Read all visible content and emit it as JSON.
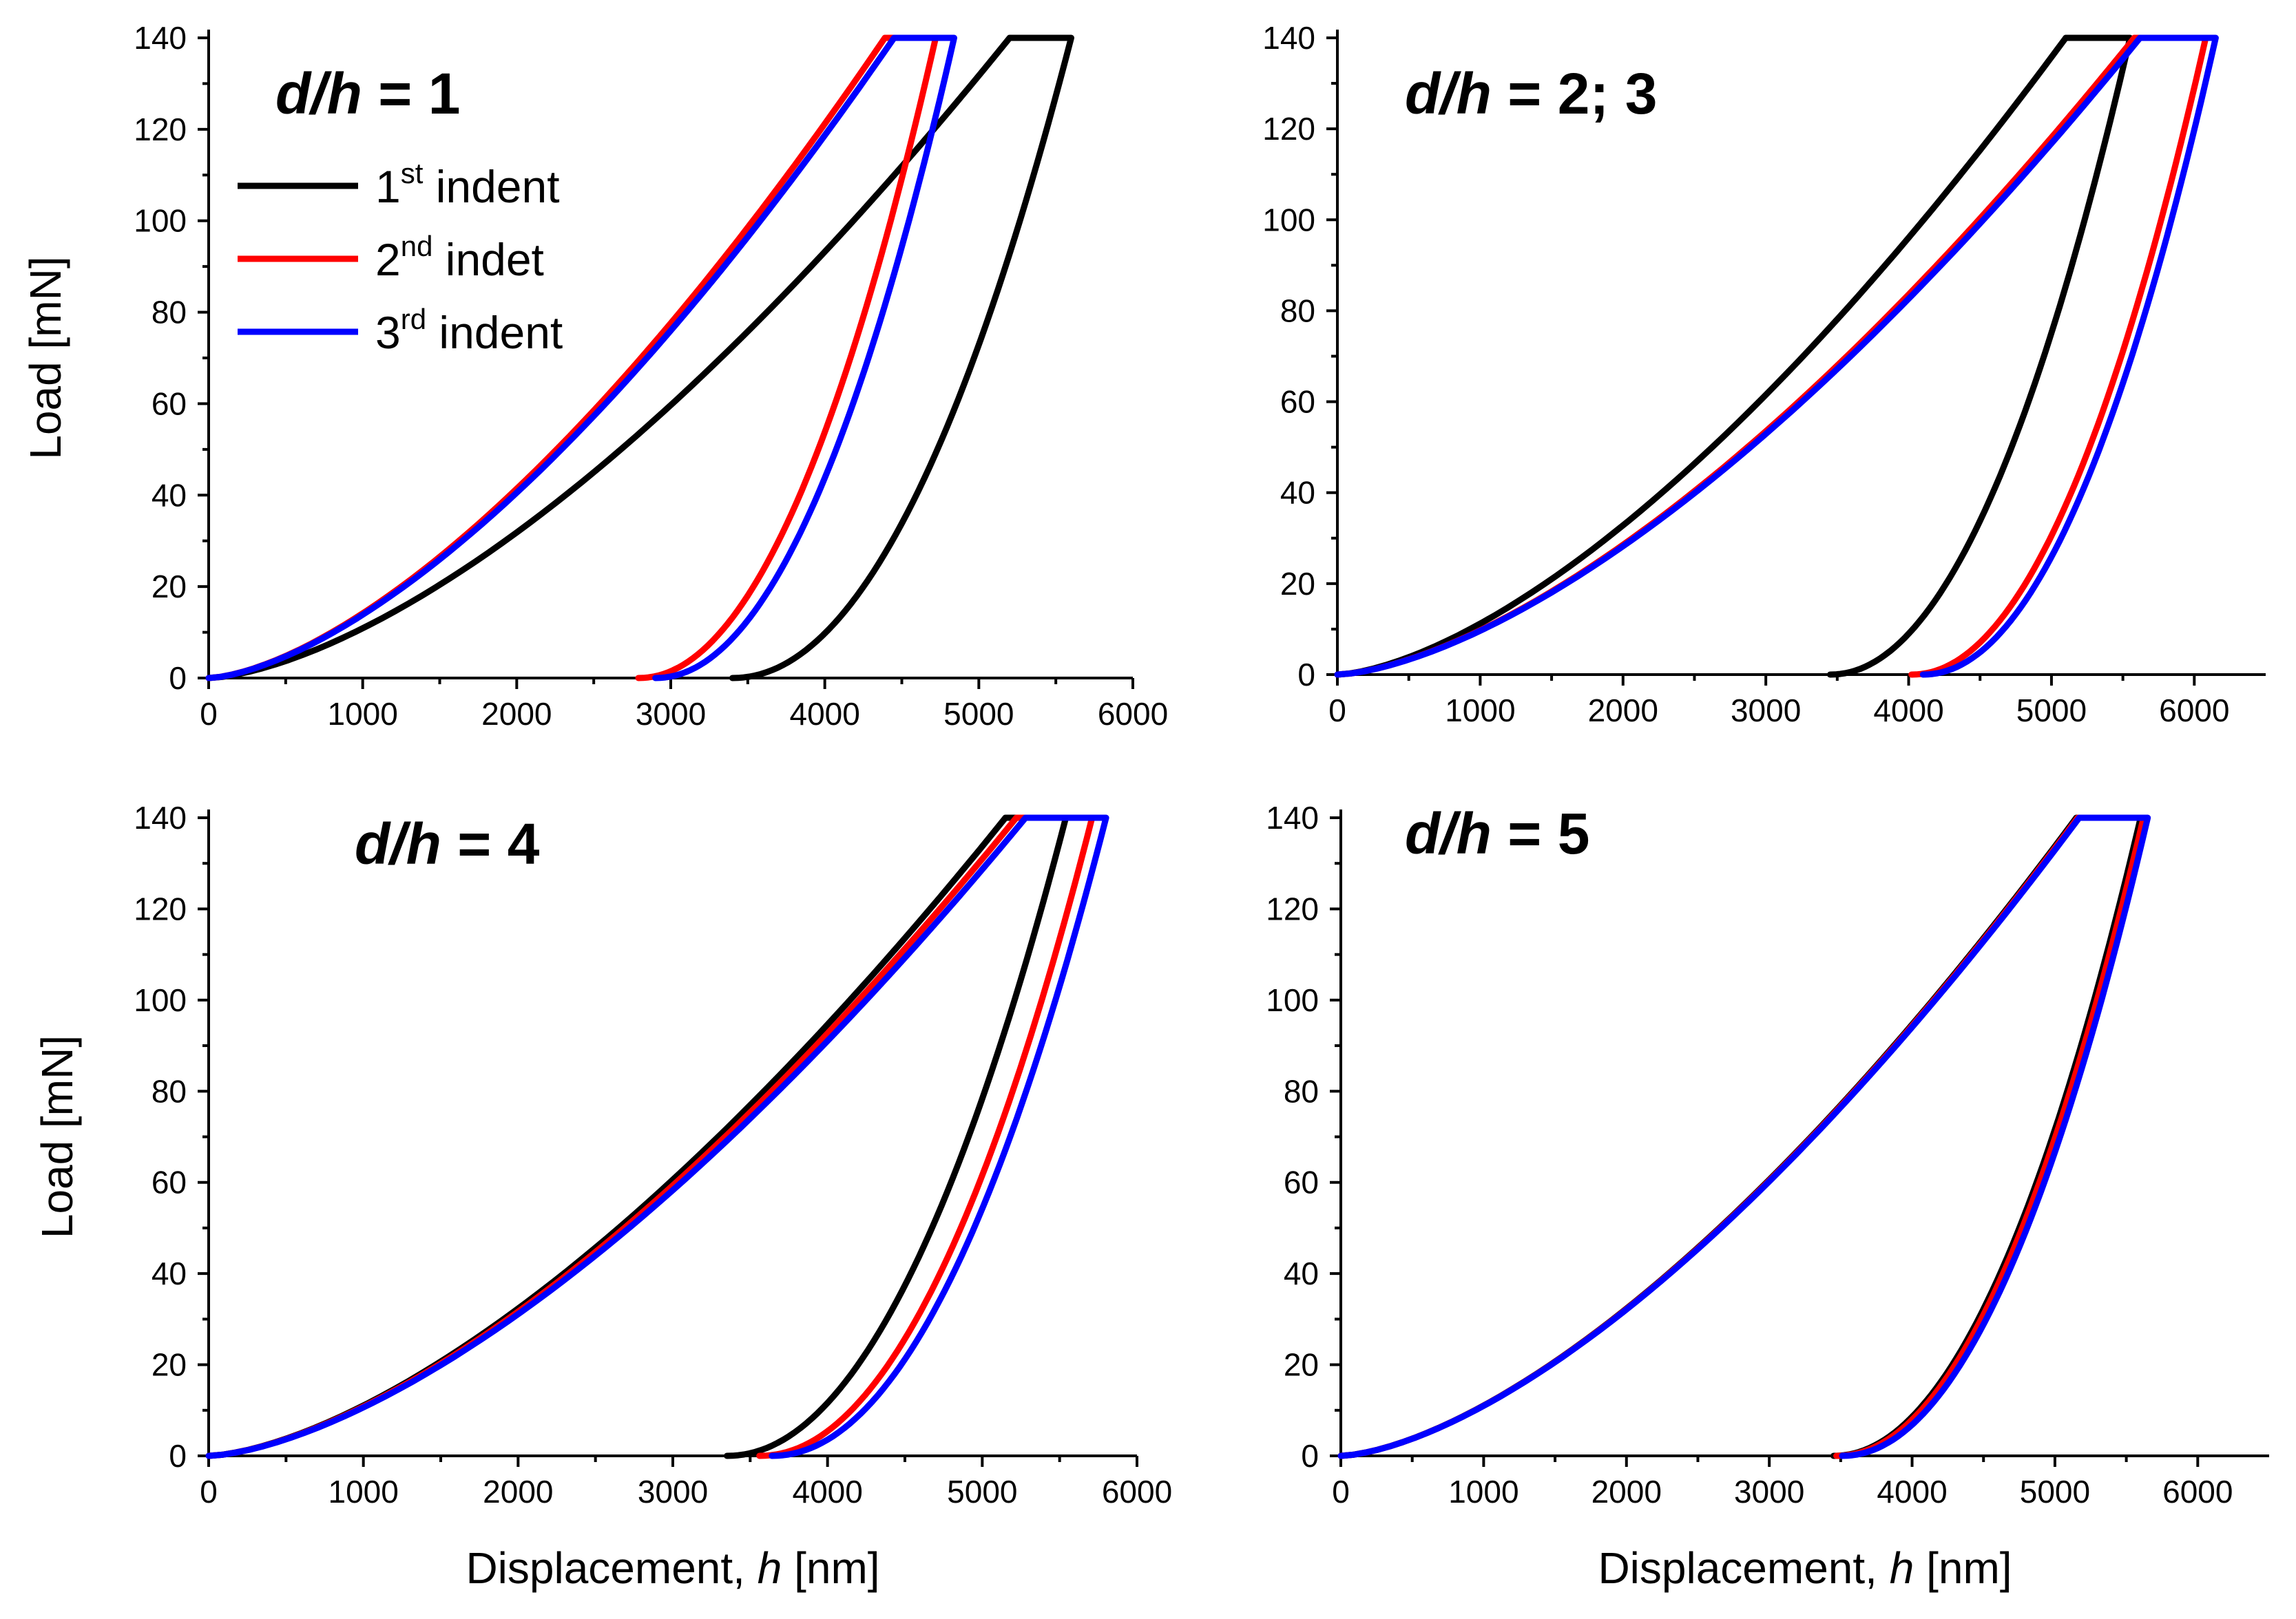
{
  "chart_data": [
    {
      "type": "line",
      "title_prefix": "d/h",
      "title_suffix": " = 1",
      "xlabel": "",
      "ylabel": "Load [mN]",
      "xlim": [
        0,
        6000
      ],
      "ylim": [
        0,
        140
      ],
      "xticks": [
        0,
        1000,
        2000,
        3000,
        4000,
        5000,
        6000
      ],
      "yticks": [
        0,
        20,
        40,
        60,
        80,
        100,
        120,
        140
      ],
      "legend": {
        "position": "top-left",
        "entries": [
          {
            "main": "1",
            "sup": "st",
            "rest": " indent",
            "color": "#000000"
          },
          {
            "main": "2",
            "sup": "nd",
            "rest": " indet",
            "color": "#ff0000"
          },
          {
            "main": "3",
            "sup": "rd",
            "rest": " indent",
            "color": "#0000ff"
          }
        ]
      },
      "series": [
        {
          "name": "1st indent",
          "color": "#000000",
          "loading_end": 5200,
          "hold_end": 5600,
          "unload_start": 3400,
          "max_load": 140
        },
        {
          "name": "2nd indet",
          "color": "#ff0000",
          "loading_end": 4390,
          "hold_end": 4720,
          "unload_start": 2790,
          "max_load": 140
        },
        {
          "name": "3rd indent",
          "color": "#0000ff",
          "loading_end": 4450,
          "hold_end": 4840,
          "unload_start": 2900,
          "max_load": 140
        }
      ]
    },
    {
      "type": "line",
      "title_prefix": "d/h",
      "title_suffix": " = 2; 3",
      "xlabel": "",
      "ylabel": "",
      "xlim": [
        0,
        6500
      ],
      "ylim": [
        0,
        140
      ],
      "xticks": [
        0,
        1000,
        2000,
        3000,
        4000,
        5000,
        6000
      ],
      "yticks": [
        0,
        20,
        40,
        60,
        80,
        100,
        120,
        140
      ],
      "series": [
        {
          "name": "1st indent",
          "color": "#000000",
          "loading_end": 5100,
          "hold_end": 5550,
          "unload_start": 3450,
          "max_load": 140
        },
        {
          "name": "2nd indet",
          "color": "#ff0000",
          "loading_end": 5580,
          "hold_end": 6080,
          "unload_start": 4020,
          "max_load": 140
        },
        {
          "name": "3rd indent",
          "color": "#0000ff",
          "loading_end": 5620,
          "hold_end": 6150,
          "unload_start": 4100,
          "max_load": 140
        }
      ]
    },
    {
      "type": "line",
      "title_prefix": "d/h",
      "title_suffix": " = 4",
      "xlabel_prefix": "Displacement, ",
      "xlabel_var": "h",
      "xlabel_suffix": " [nm]",
      "ylabel": "Load [mN]",
      "xlim": [
        0,
        6000
      ],
      "ylim": [
        0,
        140
      ],
      "xticks": [
        0,
        1000,
        2000,
        3000,
        4000,
        5000,
        6000
      ],
      "yticks": [
        0,
        20,
        40,
        60,
        80,
        100,
        120,
        140
      ],
      "series": [
        {
          "name": "1st indent",
          "color": "#000000",
          "loading_end": 5150,
          "hold_end": 5540,
          "unload_start": 3350,
          "max_load": 140
        },
        {
          "name": "2nd indet",
          "color": "#ff0000",
          "loading_end": 5220,
          "hold_end": 5710,
          "unload_start": 3560,
          "max_load": 140
        },
        {
          "name": "3rd indent",
          "color": "#0000ff",
          "loading_end": 5280,
          "hold_end": 5800,
          "unload_start": 3640,
          "max_load": 140
        }
      ]
    },
    {
      "type": "line",
      "title_prefix": "d/h",
      "title_suffix": " = 5",
      "xlabel_prefix": "Displacement, ",
      "xlabel_var": "h",
      "xlabel_suffix": " [nm]",
      "ylabel": "",
      "xlim": [
        0,
        6500
      ],
      "ylim": [
        0,
        140
      ],
      "xticks": [
        0,
        1000,
        2000,
        3000,
        4000,
        5000,
        6000
      ],
      "yticks": [
        0,
        20,
        40,
        60,
        80,
        100,
        120,
        140
      ],
      "series": [
        {
          "name": "1st indent",
          "color": "#000000",
          "loading_end": 5150,
          "hold_end": 5600,
          "unload_start": 3450,
          "max_load": 140
        },
        {
          "name": "2nd indet",
          "color": "#ff0000",
          "loading_end": 5160,
          "hold_end": 5620,
          "unload_start": 3470,
          "max_load": 140
        },
        {
          "name": "3rd indent",
          "color": "#0000ff",
          "loading_end": 5170,
          "hold_end": 5650,
          "unload_start": 3510,
          "max_load": 140
        }
      ]
    }
  ]
}
